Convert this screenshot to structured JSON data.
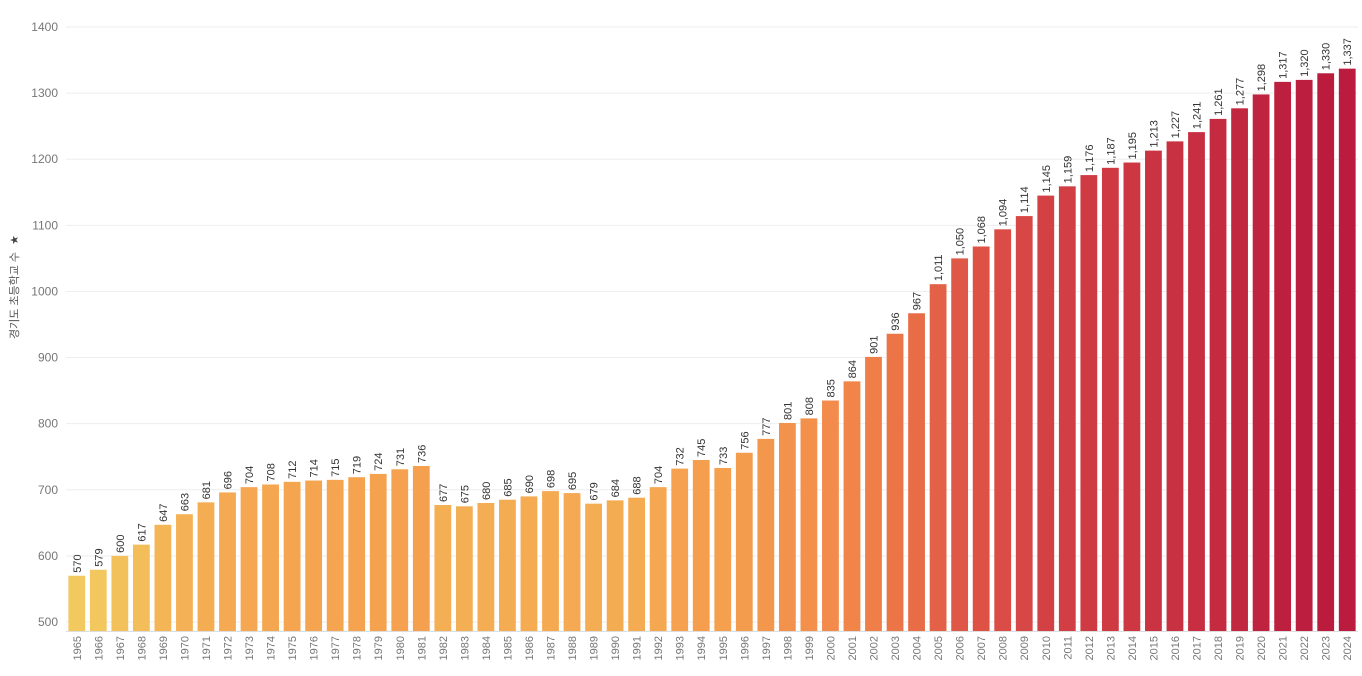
{
  "chart_data": {
    "type": "bar",
    "title": "",
    "xlabel": "",
    "ylabel": "경기도 초등학교 수",
    "ylim": [
      490,
      1405
    ],
    "yticks": [
      500,
      600,
      700,
      800,
      900,
      1000,
      1100,
      1200,
      1300,
      1400
    ],
    "grid": true,
    "categories": [
      "1965",
      "1966",
      "1967",
      "1968",
      "1969",
      "1970",
      "1971",
      "1972",
      "1973",
      "1974",
      "1975",
      "1976",
      "1977",
      "1978",
      "1979",
      "1980",
      "1981",
      "1982",
      "1983",
      "1984",
      "1985",
      "1986",
      "1987",
      "1988",
      "1989",
      "1990",
      "1991",
      "1992",
      "1993",
      "1994",
      "1995",
      "1996",
      "1997",
      "1998",
      "1999",
      "2000",
      "2001",
      "2002",
      "2003",
      "2004",
      "2005",
      "2006",
      "2007",
      "2008",
      "2009",
      "2010",
      "2011",
      "2012",
      "2013",
      "2014",
      "2015",
      "2016",
      "2017",
      "2018",
      "2019",
      "2020",
      "2021",
      "2022",
      "2023",
      "2024"
    ],
    "values": [
      570,
      579,
      600,
      617,
      647,
      663,
      681,
      696,
      704,
      708,
      712,
      714,
      715,
      719,
      724,
      731,
      736,
      677,
      675,
      680,
      685,
      690,
      698,
      695,
      679,
      684,
      688,
      704,
      732,
      745,
      733,
      756,
      777,
      801,
      808,
      835,
      864,
      901,
      936,
      967,
      1011,
      1050,
      1068,
      1094,
      1114,
      1145,
      1159,
      1176,
      1187,
      1195,
      1213,
      1227,
      1241,
      1261,
      1277,
      1298,
      1317,
      1320,
      1330,
      1337
    ],
    "data_labels": [
      "570",
      "579",
      "600",
      "617",
      "647",
      "663",
      "681",
      "696",
      "704",
      "708",
      "712",
      "714",
      "715",
      "719",
      "724",
      "731",
      "736",
      "677",
      "675",
      "680",
      "685",
      "690",
      "698",
      "695",
      "679",
      "684",
      "688",
      "704",
      "732",
      "745",
      "733",
      "756",
      "777",
      "801",
      "808",
      "835",
      "864",
      "901",
      "936",
      "967",
      "1,011",
      "1,050",
      "1,068",
      "1,094",
      "1,114",
      "1,145",
      "1,159",
      "1,176",
      "1,187",
      "1,195",
      "1,213",
      "1,227",
      "1,241",
      "1,261",
      "1,277",
      "1,298",
      "1,317",
      "1,320",
      "1,330",
      "1,337"
    ],
    "color_scale": {
      "stops": [
        {
          "value": 570,
          "color": "#F2C95F"
        },
        {
          "value": 720,
          "color": "#F5A34F"
        },
        {
          "value": 900,
          "color": "#F07E48"
        },
        {
          "value": 1100,
          "color": "#D94A45"
        },
        {
          "value": 1337,
          "color": "#BA1B3E"
        }
      ]
    }
  }
}
